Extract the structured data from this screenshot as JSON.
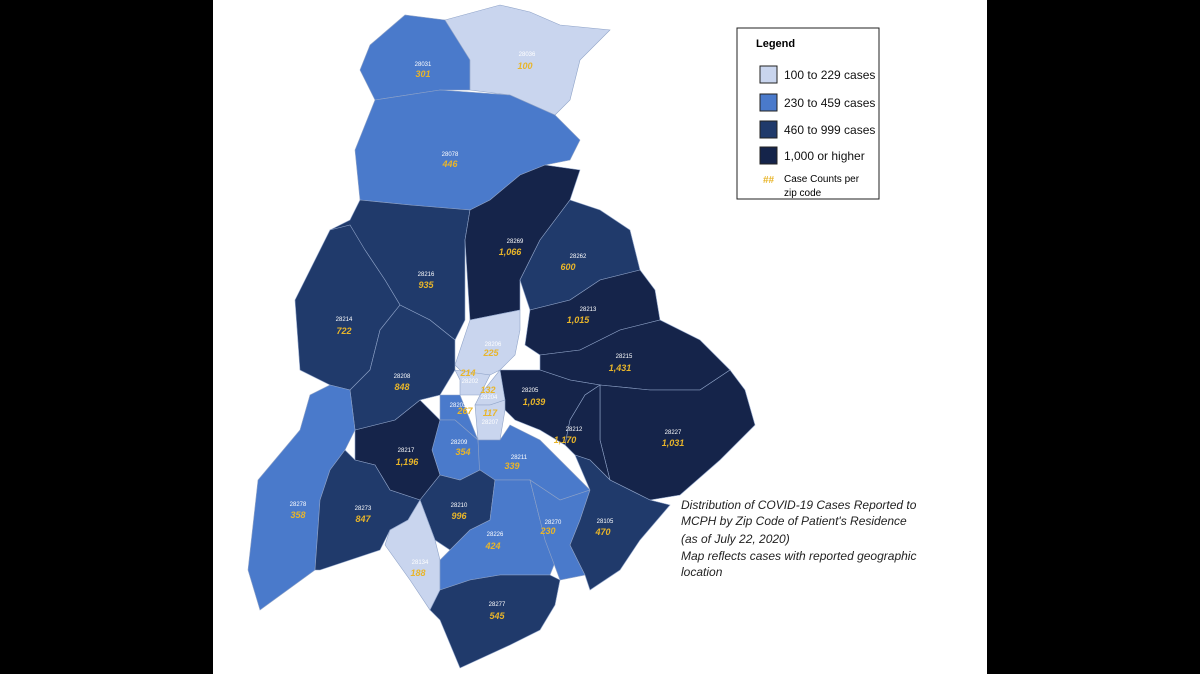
{
  "legend": {
    "title": "Legend",
    "items": [
      {
        "label": "100 to 229 cases",
        "color": "#c9d5ee"
      },
      {
        "label": "230 to 459 cases",
        "color": "#4a7acb"
      },
      {
        "label": "460 to 999 cases",
        "color": "#203a6b"
      },
      {
        "label": "1,000 or higher",
        "color": "#15244a"
      }
    ],
    "marker": "##",
    "note_lines": [
      "Case Counts per",
      "zip code"
    ]
  },
  "caption": [
    "Distribution of COVID-19 Cases Reported to",
    "MCPH by Zip Code of Patient's Residence",
    "(as of July 22, 2020)",
    "Map reflects cases with reported geographic",
    "location"
  ],
  "regions": [
    {
      "zip": "28031",
      "cases": "301",
      "color": "#4a7acb"
    },
    {
      "zip": "28036",
      "cases": "100",
      "color": "#c9d5ee"
    },
    {
      "zip": "28078",
      "cases": "446",
      "color": "#4a7acb"
    },
    {
      "zip": "28216",
      "cases": "935",
      "color": "#203a6b"
    },
    {
      "zip": "28214",
      "cases": "722",
      "color": "#203a6b"
    },
    {
      "zip": "28269",
      "cases": "1,066",
      "color": "#15244a"
    },
    {
      "zip": "28262",
      "cases": "600",
      "color": "#203a6b"
    },
    {
      "zip": "28213",
      "cases": "1,015",
      "color": "#15244a"
    },
    {
      "zip": "28215",
      "cases": "1,431",
      "color": "#15244a"
    },
    {
      "zip": "28227",
      "cases": "1,031",
      "color": "#15244a"
    },
    {
      "zip": "28205",
      "cases": "1,039",
      "color": "#15244a"
    },
    {
      "zip": "28212",
      "cases": "1,170",
      "color": "#15244a"
    },
    {
      "zip": "28206",
      "cases": "225",
      "color": "#c9d5ee"
    },
    {
      "zip": "28202",
      "cases": "214",
      "color": "#c9d5ee"
    },
    {
      "zip": "28204",
      "cases": "132",
      "color": "#c9d5ee"
    },
    {
      "zip": "28207",
      "cases": "117",
      "color": "#c9d5ee"
    },
    {
      "zip": "28203",
      "cases": "267",
      "color": "#4a7acb"
    },
    {
      "zip": "28209",
      "cases": "354",
      "color": "#4a7acb"
    },
    {
      "zip": "28211",
      "cases": "339",
      "color": "#4a7acb"
    },
    {
      "zip": "28217",
      "cases": "1,196",
      "color": "#15244a"
    },
    {
      "zip": "28208",
      "cases": "848",
      "color": "#203a6b"
    },
    {
      "zip": "28278",
      "cases": "358",
      "color": "#4a7acb"
    },
    {
      "zip": "28273",
      "cases": "847",
      "color": "#203a6b"
    },
    {
      "zip": "28210",
      "cases": "996",
      "color": "#203a6b"
    },
    {
      "zip": "28134",
      "cases": "188",
      "color": "#c9d5ee"
    },
    {
      "zip": "28226",
      "cases": "424",
      "color": "#4a7acb"
    },
    {
      "zip": "28270",
      "cases": "230",
      "color": "#4a7acb"
    },
    {
      "zip": "28105",
      "cases": "470",
      "color": "#203a6b"
    },
    {
      "zip": "28277",
      "cases": "545",
      "color": "#203a6b"
    }
  ]
}
